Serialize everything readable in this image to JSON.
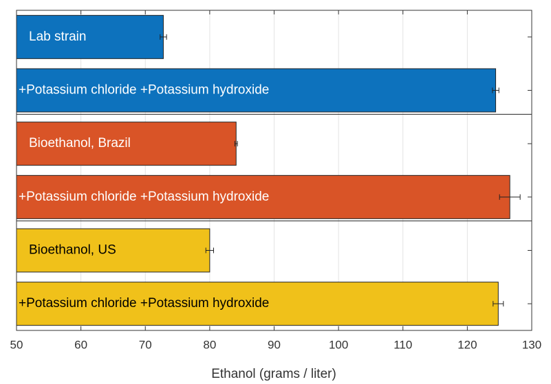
{
  "chart_data": {
    "type": "hbar",
    "categories": [
      "Lab strain",
      "+Potassium chloride +Potassium hydroxide",
      "Bioethanol, Brazil",
      "+Potassium chloride +Potassium hydroxide",
      "Bioethanol, US",
      "+Potassium chloride +Potassium hydroxide"
    ],
    "values": [
      72.8,
      124.4,
      84.1,
      126.6,
      80.0,
      124.8
    ],
    "errors": [
      0.5,
      0.5,
      0.2,
      1.6,
      0.6,
      0.8
    ],
    "colors": [
      "#0d72bd",
      "#0d72bd",
      "#d95427",
      "#d95427",
      "#f0c11a",
      "#f0c11a"
    ],
    "label_colors": [
      "#ffffff",
      "#ffffff",
      "#ffffff",
      "#ffffff",
      "#000000",
      "#000000"
    ],
    "xlim": [
      50,
      130
    ],
    "xticks": [
      50,
      60,
      70,
      80,
      90,
      100,
      110,
      120,
      130
    ],
    "xlabel": "Ethanol (grams / liter)",
    "grid": true
  }
}
